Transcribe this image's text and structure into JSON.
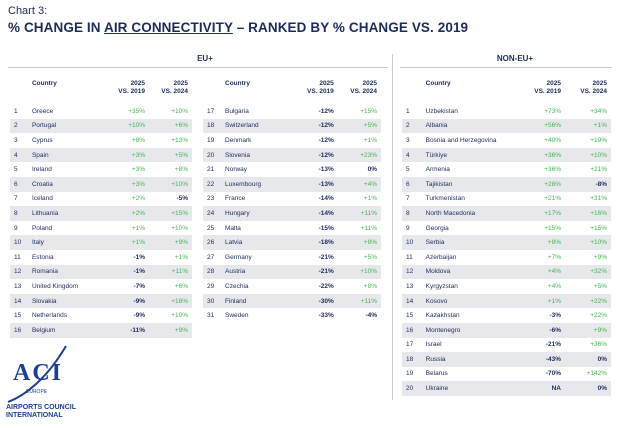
{
  "header": {
    "subtitle": "Chart 3:",
    "title_pre": "% CHANGE IN ",
    "title_ul": "AIR CONNECTIVITY",
    "title_post": " – RANKED BY % CHANGE VS. 2019"
  },
  "groups": {
    "eu": "EU+",
    "non_eu": "NON-EU+"
  },
  "columns": {
    "country": "Country",
    "c2019": "2025\nVS. 2019",
    "c2024": "2025\nVS. 2024"
  },
  "logo": {
    "acronym": "ACI",
    "region": "EUROPE",
    "line1": "AIRPORTS COUNCIL",
    "line2": "INTERNATIONAL"
  },
  "colors": {
    "navy": "#1c2b5a",
    "positive": "#45b34f",
    "stripe": "#e7e8ec",
    "brand_blue": "#1c3f94"
  },
  "chart_data": {
    "type": "table",
    "eu": [
      {
        "rank": "1",
        "country": "Greece",
        "v2019": "+35%",
        "v2024": "+10%"
      },
      {
        "rank": "2",
        "country": "Portugal",
        "v2019": "+10%",
        "v2024": "+6%"
      },
      {
        "rank": "3",
        "country": "Cyprus",
        "v2019": "+8%",
        "v2024": "+13%"
      },
      {
        "rank": "4",
        "country": "Spain",
        "v2019": "+3%",
        "v2024": "+5%"
      },
      {
        "rank": "5",
        "country": "Ireland",
        "v2019": "+3%",
        "v2024": "+8%"
      },
      {
        "rank": "6",
        "country": "Croatia",
        "v2019": "+3%",
        "v2024": "+10%"
      },
      {
        "rank": "7",
        "country": "Iceland",
        "v2019": "+2%",
        "v2024": "-5%"
      },
      {
        "rank": "8",
        "country": "Lithuania",
        "v2019": "+2%",
        "v2024": "+15%"
      },
      {
        "rank": "9",
        "country": "Poland",
        "v2019": "+1%",
        "v2024": "+10%"
      },
      {
        "rank": "10",
        "country": "Italy",
        "v2019": "+1%",
        "v2024": "+9%"
      },
      {
        "rank": "11",
        "country": "Estonia",
        "v2019": "-1%",
        "v2024": "+1%"
      },
      {
        "rank": "12",
        "country": "Romania",
        "v2019": "-1%",
        "v2024": "+11%"
      },
      {
        "rank": "13",
        "country": "United Kingdom",
        "v2019": "-7%",
        "v2024": "+6%"
      },
      {
        "rank": "14",
        "country": "Slovakia",
        "v2019": "-9%",
        "v2024": "+18%"
      },
      {
        "rank": "15",
        "country": "Netherlands",
        "v2019": "-9%",
        "v2024": "+10%"
      },
      {
        "rank": "16",
        "country": "Belgium",
        "v2019": "-11%",
        "v2024": "+9%"
      },
      {
        "rank": "17",
        "country": "Bulgaria",
        "v2019": "-12%",
        "v2024": "+15%"
      },
      {
        "rank": "18",
        "country": "Switzerland",
        "v2019": "-12%",
        "v2024": "+5%"
      },
      {
        "rank": "19",
        "country": "Denmark",
        "v2019": "-12%",
        "v2024": "+1%"
      },
      {
        "rank": "20",
        "country": "Slovenia",
        "v2019": "-12%",
        "v2024": "+23%"
      },
      {
        "rank": "21",
        "country": "Norway",
        "v2019": "-13%",
        "v2024": "0%"
      },
      {
        "rank": "22",
        "country": "Luxembourg",
        "v2019": "-13%",
        "v2024": "+4%"
      },
      {
        "rank": "23",
        "country": "France",
        "v2019": "-14%",
        "v2024": "+1%"
      },
      {
        "rank": "24",
        "country": "Hungary",
        "v2019": "-14%",
        "v2024": "+11%"
      },
      {
        "rank": "25",
        "country": "Malta",
        "v2019": "-15%",
        "v2024": "+11%"
      },
      {
        "rank": "26",
        "country": "Latvia",
        "v2019": "-18%",
        "v2024": "+8%"
      },
      {
        "rank": "27",
        "country": "Germany",
        "v2019": "-21%",
        "v2024": "+5%"
      },
      {
        "rank": "28",
        "country": "Austria",
        "v2019": "-21%",
        "v2024": "+10%"
      },
      {
        "rank": "29",
        "country": "Czechia",
        "v2019": "-22%",
        "v2024": "+8%"
      },
      {
        "rank": "30",
        "country": "Finland",
        "v2019": "-30%",
        "v2024": "+11%"
      },
      {
        "rank": "31",
        "country": "Sweden",
        "v2019": "-33%",
        "v2024": "-4%"
      }
    ],
    "non_eu": [
      {
        "rank": "1",
        "country": "Uzbekistan",
        "v2019": "+73%",
        "v2024": "+34%"
      },
      {
        "rank": "2",
        "country": "Albania",
        "v2019": "+56%",
        "v2024": "+1%"
      },
      {
        "rank": "3",
        "country": "Bosnia and Herzegovina",
        "v2019": "+40%",
        "v2024": "+19%"
      },
      {
        "rank": "4",
        "country": "Türkiye",
        "v2019": "+36%",
        "v2024": "+10%"
      },
      {
        "rank": "5",
        "country": "Armenia",
        "v2019": "+36%",
        "v2024": "+21%"
      },
      {
        "rank": "6",
        "country": "Tajikistan",
        "v2019": "+28%",
        "v2024": "-8%"
      },
      {
        "rank": "7",
        "country": "Turkmenistan",
        "v2019": "+21%",
        "v2024": "+31%"
      },
      {
        "rank": "8",
        "country": "North Macedonia",
        "v2019": "+17%",
        "v2024": "+16%"
      },
      {
        "rank": "9",
        "country": "Georgia",
        "v2019": "+15%",
        "v2024": "+15%"
      },
      {
        "rank": "10",
        "country": "Serbia",
        "v2019": "+8%",
        "v2024": "+10%"
      },
      {
        "rank": "11",
        "country": "Azerbaijan",
        "v2019": "+7%",
        "v2024": "+9%"
      },
      {
        "rank": "12",
        "country": "Moldova",
        "v2019": "+4%",
        "v2024": "+32%"
      },
      {
        "rank": "13",
        "country": "Kyrgyzstan",
        "v2019": "+4%",
        "v2024": "+5%"
      },
      {
        "rank": "14",
        "country": "Kosovo",
        "v2019": "+1%",
        "v2024": "+22%"
      },
      {
        "rank": "15",
        "country": "Kazakhstan",
        "v2019": "-3%",
        "v2024": "+22%"
      },
      {
        "rank": "16",
        "country": "Montenegro",
        "v2019": "-6%",
        "v2024": "+9%"
      },
      {
        "rank": "17",
        "country": "Israel",
        "v2019": "-21%",
        "v2024": "+36%"
      },
      {
        "rank": "18",
        "country": "Russia",
        "v2019": "-43%",
        "v2024": "0%"
      },
      {
        "rank": "19",
        "country": "Belarus",
        "v2019": "-70%",
        "v2024": "+142%"
      },
      {
        "rank": "20",
        "country": "Ukraine",
        "v2019": "NA",
        "v2024": "0%"
      }
    ]
  }
}
